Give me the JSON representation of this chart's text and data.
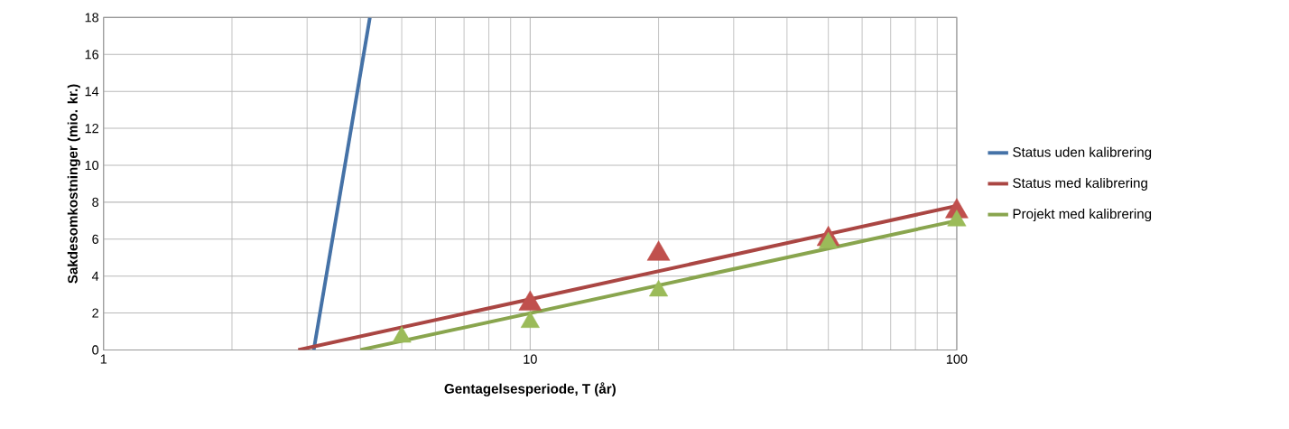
{
  "chart_data": {
    "type": "line",
    "xlabel": "Gentagelsesperiode, T (år)",
    "ylabel": "Sakdesomkostninger (mio. kr.)",
    "log": "x",
    "xlim": [
      1,
      100
    ],
    "xticks": [
      1,
      10,
      100
    ],
    "ylim": [
      0,
      18
    ],
    "yticks": [
      0,
      2,
      4,
      6,
      8,
      10,
      12,
      14,
      16,
      18
    ],
    "grid": true,
    "legend": "right",
    "line_style": "solid",
    "series": [
      {
        "name": "Status uden kalibrering",
        "color": "#4572a7",
        "x": [
          3.11,
          4.21
        ],
        "values": [
          0,
          18
        ]
      },
      {
        "name": "Status med kalibrering",
        "color": "#aa4643",
        "x": [
          2.86,
          100
        ],
        "values": [
          0,
          7.8
        ]
      },
      {
        "name": "Projekt med kalibrering",
        "color": "#89a54e",
        "x": [
          4.0,
          100
        ],
        "values": [
          0,
          7.0
        ]
      },
      {
        "type": "scatter",
        "marker": "triangle",
        "color": "#c0504d",
        "x": [
          10,
          20,
          50,
          100
        ],
        "values": [
          2.5,
          5.2,
          6.0,
          7.5
        ]
      },
      {
        "type": "scatter",
        "marker": "triangle",
        "color": "#9bbb59",
        "x": [
          5,
          10,
          20,
          50,
          100
        ],
        "values": [
          0.7,
          1.5,
          3.2,
          5.8,
          7.0
        ]
      }
    ]
  }
}
